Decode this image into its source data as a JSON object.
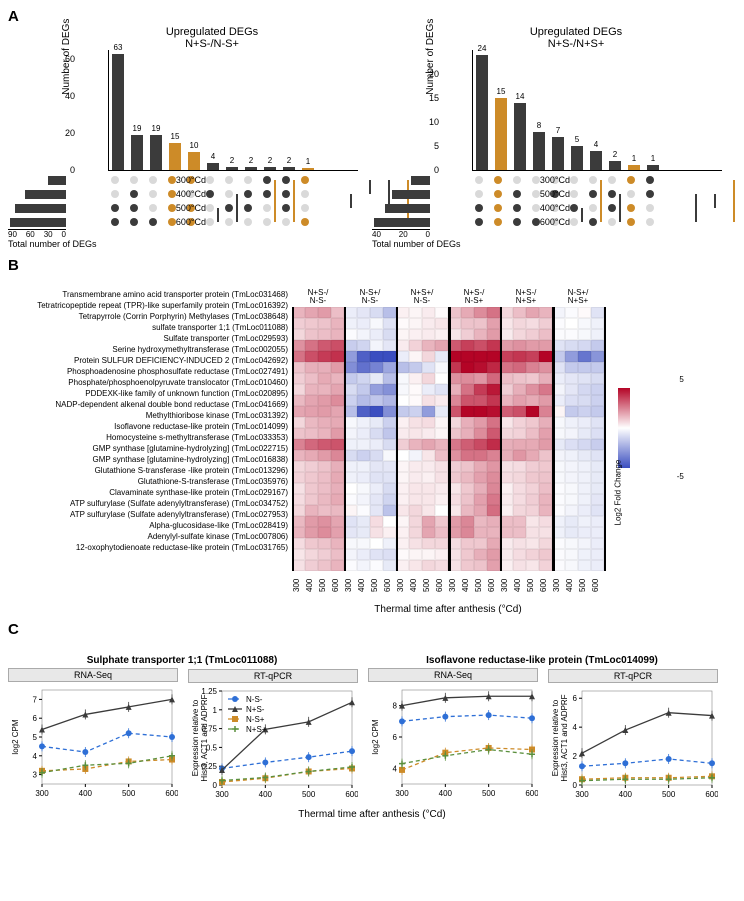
{
  "panelA": {
    "ylabel": "Number of DEGs",
    "left": {
      "title1": "Upregulated DEGs",
      "title2": "N+S-/N-S+",
      "ymax": 65,
      "yticks": [
        0,
        20,
        40,
        60
      ],
      "sets": [
        "300°Cd",
        "400°Cd",
        "500°Cd",
        "600°Cd"
      ],
      "setSizes": [
        32,
        72,
        89,
        98
      ],
      "setSizeTicks": [
        "90",
        "60",
        "30",
        "0"
      ],
      "setSizeLabel": "Total number of DEGs",
      "bars": [
        {
          "v": 63,
          "sets": [
            0,
            0,
            1,
            1
          ],
          "hl": false
        },
        {
          "v": 19,
          "sets": [
            0,
            1,
            1,
            1
          ],
          "hl": false
        },
        {
          "v": 19,
          "sets": [
            0,
            0,
            0,
            1
          ],
          "hl": false
        },
        {
          "v": 15,
          "sets": [
            1,
            1,
            1,
            1
          ],
          "hl": true
        },
        {
          "v": 10,
          "sets": [
            1,
            0,
            1,
            1
          ],
          "hl": true
        },
        {
          "v": 4,
          "sets": [
            0,
            1,
            0,
            0
          ],
          "hl": false
        },
        {
          "v": 2,
          "sets": [
            0,
            0,
            1,
            0
          ],
          "hl": false
        },
        {
          "v": 2,
          "sets": [
            0,
            1,
            1,
            0
          ],
          "hl": false
        },
        {
          "v": 2,
          "sets": [
            1,
            1,
            0,
            0
          ],
          "hl": false
        },
        {
          "v": 2,
          "sets": [
            1,
            1,
            1,
            0
          ],
          "hl": false
        },
        {
          "v": 1,
          "sets": [
            1,
            0,
            0,
            1
          ],
          "hl": true
        }
      ]
    },
    "right": {
      "title1": "Upregulated DEGs",
      "title2": "N+S-/N+S+",
      "ymax": 25,
      "yticks": [
        0,
        5,
        10,
        15,
        20
      ],
      "sets": [
        "300°Cd",
        "500°Cd",
        "400°Cd",
        "600°Cd"
      ],
      "setSizes": [
        16,
        32,
        38,
        47
      ],
      "setSizeTicks": [
        "40",
        "20",
        "0"
      ],
      "setSizeLabel": "Total number of DEGs",
      "bars": [
        {
          "v": 24,
          "sets": [
            0,
            0,
            1,
            1
          ],
          "hl": false
        },
        {
          "v": 15,
          "sets": [
            1,
            1,
            1,
            1
          ],
          "hl": true
        },
        {
          "v": 14,
          "sets": [
            0,
            1,
            1,
            1
          ],
          "hl": false
        },
        {
          "v": 8,
          "sets": [
            0,
            0,
            0,
            1
          ],
          "hl": false
        },
        {
          "v": 7,
          "sets": [
            0,
            1,
            0,
            0
          ],
          "hl": false
        },
        {
          "v": 5,
          "sets": [
            0,
            0,
            1,
            0
          ],
          "hl": false
        },
        {
          "v": 4,
          "sets": [
            0,
            1,
            0,
            1
          ],
          "hl": false
        },
        {
          "v": 2,
          "sets": [
            0,
            1,
            1,
            0
          ],
          "hl": false
        },
        {
          "v": 1,
          "sets": [
            1,
            0,
            1,
            1
          ],
          "hl": true
        },
        {
          "v": 1,
          "sets": [
            1,
            1,
            0,
            0
          ],
          "hl": false
        }
      ]
    },
    "colors": {
      "bar": "#3b3b3b",
      "hl": "#cd8b28",
      "dotOff": "#d9d9d9"
    }
  },
  "panelB": {
    "genes": [
      "Transmembrane amino acid transporter protein (TmLoc031468)",
      "Tetratricopeptide repeat (TPR)-like superfamily protein (TmLoc016392)",
      "Tetrapyrrole (Corrin Porphyrin) Methylases (TmLoc038648)",
      "sulfate transporter 1;1 (TmLoc011088)",
      "Sulfate transporter (TmLoc029593)",
      "Serine hydroxymethyltransferase (TmLoc002055)",
      "Protein SULFUR DEFICIENCY-INDUCED 2 (TmLoc042692)",
      "Phosphoadenosine phosphosulfate reductase (TmLoc027491)",
      "Phosphate/phosphoenolpyruvate translocator (TmLoc010460)",
      "PDDEXK-like family of unknown function (TmLoc020895)",
      "NADP-dependent alkenal double bond reductase (TmLoc041669)",
      "Methylthioribose kinase (TmLoc031392)",
      "Isoflavone reductase-like protein (TmLoc014099)",
      "Homocysteine s-methyltransferase (TmLoc033353)",
      "GMP synthase [glutamine-hydrolyzing] (TmLoc022715)",
      "GMP synthase [glutamine-hydrolyzing] (TmLoc016838)",
      "Glutathione S-transferase -like protein (TmLoc013296)",
      "Glutathione-S-transferase (TmLoc035976)",
      "Clavaminate synthase-like protein (TmLoc029167)",
      "ATP sulfurylase (Sulfate adenylyltransferase) (TmLoc034752)",
      "ATP sulfurylase (Sulfate adenylyltransferase) (TmLoc027953)",
      "Alpha-glucosidase-like (TmLoc028419)",
      "Adenylyl-sulfate kinase (TmLoc007806)",
      "12-oxophytodienoate reductase-like protein (TmLoc031765)"
    ],
    "colGroups": [
      "N+S-/\nN-S-",
      "N-S+/\nN-S-",
      "N+S+/\nN-S-",
      "N+S-/\nN-S+",
      "N+S-/\nN+S+",
      "N-S+/\nN+S+"
    ],
    "ticks": [
      "300",
      "400",
      "500",
      "600"
    ],
    "xlabel": "Thermal time after anthesis (°Cd)",
    "legendLabel": "Log2 Fold Change",
    "legendMin": -5,
    "legendMax": 5,
    "colorLow": "#3b4ec0",
    "colorMid": "#ffffff",
    "colorHigh": "#b40426",
    "values": [
      [
        1.5,
        1.8,
        2.0,
        1.3,
        -0.5,
        -0.7,
        -1.0,
        -1.8,
        0.3,
        0.2,
        0.4,
        0.1,
        1.2,
        1.7,
        2.3,
        2.8,
        0.8,
        1.3,
        1.8,
        1.5,
        -0.3,
        -0.1,
        0.1,
        -0.8
      ],
      [
        1.0,
        1.1,
        1.2,
        1.5,
        -0.4,
        -0.5,
        -0.2,
        -0.8,
        0.1,
        0.2,
        0.4,
        0.5,
        0.9,
        1.2,
        1.2,
        1.9,
        0.5,
        0.8,
        0.7,
        1.0,
        -0.1,
        0.0,
        -0.2,
        -0.4
      ],
      [
        0.8,
        1.2,
        1.3,
        1.5,
        -0.1,
        -0.3,
        -0.5,
        -1.0,
        0.2,
        0.3,
        0.4,
        0.3,
        0.5,
        1.0,
        1.5,
        2.0,
        0.4,
        0.8,
        1.0,
        1.3,
        -0.1,
        -0.1,
        -0.2,
        -0.4
      ],
      [
        2.2,
        2.8,
        3.3,
        3.5,
        -1.4,
        -1.2,
        -0.3,
        -0.7,
        0.4,
        0.9,
        1.5,
        1.8,
        3.3,
        3.8,
        3.5,
        4.0,
        2.0,
        2.2,
        2.0,
        2.0,
        -0.8,
        -1.0,
        -1.1,
        -1.5
      ],
      [
        2.8,
        3.5,
        3.9,
        4.1,
        -2.8,
        -4.5,
        -5.3,
        -5.8,
        -0.5,
        0.2,
        0.8,
        -0.6,
        5.0,
        7.5,
        8.8,
        9.5,
        3.8,
        4.0,
        3.8,
        5.0,
        -1.5,
        -2.8,
        -3.9,
        -3.0
      ],
      [
        1.2,
        1.6,
        1.6,
        2.0,
        -3.2,
        -4.0,
        -3.5,
        -2.5,
        -1.8,
        -1.5,
        -0.8,
        -0.2,
        4.0,
        5.2,
        4.8,
        4.3,
        2.8,
        3.0,
        2.5,
        2.2,
        -0.8,
        -1.5,
        -1.5,
        -1.5
      ],
      [
        1.0,
        1.3,
        1.7,
        1.5,
        -1.5,
        -1.2,
        -0.6,
        -1.8,
        -0.2,
        0.3,
        0.8,
        0.0,
        2.2,
        2.3,
        2.1,
        3.0,
        1.3,
        1.2,
        1.1,
        1.6,
        -0.5,
        -0.7,
        -0.8,
        -1.0
      ],
      [
        0.8,
        1.5,
        1.5,
        1.8,
        -1.0,
        -1.5,
        -2.7,
        -3.1,
        -0.2,
        0.1,
        -0.5,
        -0.8,
        1.6,
        2.8,
        3.9,
        4.6,
        1.0,
        1.6,
        2.2,
        2.7,
        -0.3,
        -0.7,
        -1.1,
        -1.3
      ],
      [
        1.4,
        1.8,
        2.0,
        2.3,
        -1.3,
        -1.9,
        -1.6,
        -2.0,
        0.0,
        0.1,
        0.6,
        0.4,
        2.4,
        3.4,
        3.4,
        4.0,
        1.5,
        1.9,
        1.7,
        2.0,
        -0.5,
        -0.9,
        -1.0,
        -1.3
      ],
      [
        1.8,
        1.9,
        2.0,
        1.8,
        -1.8,
        -4.5,
        -6.2,
        -3.2,
        -1.5,
        -1.3,
        -2.8,
        -0.6,
        3.4,
        6.0,
        7.8,
        4.8,
        3.2,
        3.5,
        5.2,
        2.5,
        0.2,
        -1.5,
        -1.3,
        -1.5
      ],
      [
        0.8,
        1.4,
        1.6,
        1.7,
        -0.2,
        -0.4,
        -0.6,
        -1.3,
        0.3,
        0.6,
        0.7,
        0.2,
        0.8,
        1.6,
        2.0,
        2.8,
        0.5,
        0.9,
        1.1,
        1.6,
        -0.2,
        -0.4,
        -0.5,
        -0.8
      ],
      [
        1.2,
        1.3,
        1.5,
        2.0,
        -0.3,
        -0.5,
        -1.0,
        -1.6,
        0.4,
        0.5,
        0.4,
        0.2,
        1.2,
        1.6,
        2.3,
        3.3,
        0.8,
        0.9,
        1.3,
        1.9,
        -0.2,
        -0.3,
        -0.6,
        -0.9
      ],
      [
        2.5,
        3.0,
        3.3,
        3.4,
        -0.4,
        -0.4,
        -0.5,
        -1.0,
        1.0,
        1.5,
        1.8,
        1.5,
        2.7,
        3.2,
        3.6,
        4.2,
        1.6,
        1.7,
        1.7,
        2.0,
        -0.6,
        -0.9,
        -1.1,
        -1.4
      ],
      [
        1.5,
        1.7,
        2.0,
        2.4,
        -1.0,
        -1.3,
        -1.0,
        -0.2,
        0.0,
        -0.3,
        0.5,
        1.3,
        2.2,
        2.8,
        2.8,
        2.5,
        1.6,
        2.1,
        1.7,
        1.2,
        -0.3,
        -0.4,
        -0.6,
        -0.8
      ],
      [
        0.8,
        1.0,
        1.2,
        1.6,
        -0.4,
        -0.4,
        -0.7,
        -0.7,
        0.2,
        0.4,
        0.4,
        0.6,
        1.0,
        1.2,
        1.7,
        2.1,
        0.6,
        0.7,
        1.0,
        1.1,
        -0.2,
        -0.3,
        -0.4,
        -0.6
      ],
      [
        0.9,
        1.1,
        1.3,
        1.7,
        -0.4,
        -0.5,
        -0.8,
        -0.8,
        0.2,
        0.4,
        0.3,
        0.6,
        1.1,
        1.4,
        1.9,
        2.3,
        0.7,
        0.8,
        1.1,
        1.2,
        -0.2,
        -0.3,
        -0.4,
        -0.6
      ],
      [
        0.6,
        1.1,
        1.3,
        1.6,
        0.0,
        -0.2,
        -0.5,
        -1.0,
        0.3,
        0.5,
        0.5,
        0.4,
        0.5,
        1.1,
        1.6,
        2.4,
        0.3,
        0.7,
        0.9,
        1.3,
        -0.1,
        -0.2,
        -0.4,
        -0.6
      ],
      [
        0.7,
        1.1,
        1.4,
        1.7,
        -0.1,
        -0.3,
        -0.7,
        -1.2,
        0.3,
        0.5,
        0.5,
        0.3,
        0.7,
        1.2,
        1.9,
        2.7,
        0.4,
        0.7,
        1.0,
        1.5,
        -0.1,
        -0.2,
        -0.4,
        -0.7
      ],
      [
        0.8,
        1.5,
        1.3,
        1.4,
        0.2,
        -0.1,
        -0.7,
        -1.7,
        0.5,
        0.8,
        0.5,
        0.0,
        0.5,
        1.4,
        1.8,
        2.9,
        0.3,
        0.8,
        0.9,
        1.5,
        -0.1,
        -0.3,
        -0.5,
        -0.8
      ],
      [
        1.4,
        2.0,
        2.2,
        1.8,
        -0.8,
        -0.6,
        0.7,
        0.0,
        0.2,
        0.8,
        1.8,
        1.1,
        2.0,
        2.4,
        1.4,
        1.6,
        1.3,
        1.3,
        0.5,
        0.7,
        -0.4,
        -0.6,
        -0.4,
        -0.5
      ],
      [
        1.5,
        2.0,
        2.3,
        1.9,
        -0.7,
        -0.6,
        0.6,
        0.3,
        0.3,
        0.8,
        1.8,
        1.3,
        2.0,
        2.4,
        1.5,
        1.5,
        1.3,
        1.3,
        0.6,
        0.6,
        -0.4,
        -0.6,
        -0.5,
        -0.5
      ],
      [
        0.7,
        1.1,
        1.2,
        1.5,
        -0.2,
        -0.2,
        0.0,
        -0.4,
        0.3,
        0.6,
        0.8,
        0.8,
        0.7,
        1.1,
        1.1,
        1.7,
        0.4,
        0.6,
        0.5,
        0.8,
        -0.1,
        -0.2,
        -0.3,
        -0.5
      ],
      [
        0.5,
        0.8,
        1.0,
        1.3,
        -0.3,
        -0.5,
        -0.8,
        -0.9,
        0.1,
        0.2,
        0.2,
        0.3,
        0.6,
        1.1,
        1.6,
        2.0,
        0.4,
        0.7,
        0.9,
        1.1,
        -0.1,
        -0.2,
        -0.4,
        -0.5
      ],
      [
        0.6,
        1.0,
        1.2,
        1.5,
        -0.1,
        -0.3,
        -0.1,
        -0.6,
        0.3,
        0.5,
        0.8,
        0.7,
        0.6,
        1.1,
        1.2,
        1.9,
        0.3,
        0.6,
        0.5,
        0.9,
        -0.1,
        -0.2,
        -0.4,
        -0.5
      ]
    ]
  },
  "panelC": {
    "titles": [
      "Sulphate transporter 1;1 (TmLoc011088)",
      "Isoflavone reductase-like protein (TmLoc014099)"
    ],
    "subs": [
      "RNA-Seq",
      "RT-qPCR",
      "RNA-Seq",
      "RT-qPCR"
    ],
    "ylabels": [
      "log2 CPM",
      "Expression relative to\nHist3, ACT1 and ADPRF",
      "log2 CPM",
      "Expression relative to\nHist3, ACT1 and ADPRF"
    ],
    "xlabel": "Thermal time after anthesis (°Cd)",
    "xticks": [
      300,
      400,
      500,
      600
    ],
    "series": [
      {
        "name": "N-S-",
        "color": "#2e6fd6",
        "marker": "circle",
        "dash": "4,3"
      },
      {
        "name": "N+S-",
        "color": "#3b3b3b",
        "marker": "triangle",
        "dash": "0"
      },
      {
        "name": "N-S+",
        "color": "#cd8b28",
        "marker": "square",
        "dash": "4,3"
      },
      {
        "name": "N+S+",
        "color": "#5a8f3d",
        "marker": "cross",
        "dash": "4,3"
      }
    ],
    "plots": [
      {
        "ymin": 2.5,
        "ymax": 7.5,
        "yticks": [
          3,
          4,
          5,
          6,
          7
        ],
        "data": [
          [
            4.5,
            4.2,
            5.2,
            5.0
          ],
          [
            5.4,
            6.2,
            6.6,
            7.0
          ],
          [
            3.2,
            3.3,
            3.7,
            3.8
          ],
          [
            3.1,
            3.5,
            3.6,
            4.0
          ]
        ]
      },
      {
        "ymin": 0,
        "ymax": 1.25,
        "yticks": [
          0,
          0.25,
          0.5,
          0.75,
          1.0,
          1.25
        ],
        "data": [
          [
            0.22,
            0.3,
            0.37,
            0.45
          ],
          [
            0.2,
            0.74,
            0.84,
            1.1
          ],
          [
            0.04,
            0.09,
            0.18,
            0.22
          ],
          [
            0.06,
            0.1,
            0.18,
            0.24
          ]
        ]
      },
      {
        "ymin": 3,
        "ymax": 9,
        "yticks": [
          4,
          6,
          8
        ],
        "data": [
          [
            7.0,
            7.3,
            7.4,
            7.2
          ],
          [
            8.0,
            8.5,
            8.6,
            8.6
          ],
          [
            3.9,
            5.0,
            5.3,
            5.2
          ],
          [
            4.3,
            4.8,
            5.2,
            4.9
          ]
        ]
      },
      {
        "ymin": 0,
        "ymax": 6.5,
        "yticks": [
          0,
          2,
          4,
          6
        ],
        "data": [
          [
            1.3,
            1.5,
            1.8,
            1.5
          ],
          [
            2.2,
            3.8,
            5.0,
            4.8
          ],
          [
            0.4,
            0.5,
            0.5,
            0.6
          ],
          [
            0.3,
            0.4,
            0.4,
            0.5
          ]
        ]
      }
    ]
  }
}
